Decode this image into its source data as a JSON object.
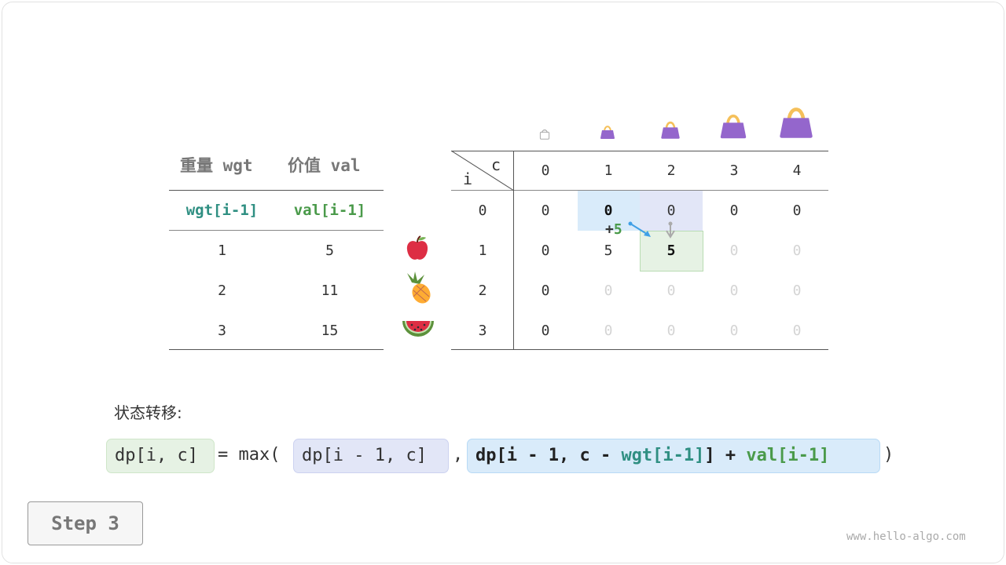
{
  "left_table": {
    "headers": [
      "重量 wgt",
      "价值 val"
    ],
    "subheaders": [
      "wgt[i-1]",
      "val[i-1]"
    ],
    "rows": [
      [
        "1",
        "5"
      ],
      [
        "2",
        "11"
      ],
      [
        "3",
        "15"
      ]
    ],
    "items": [
      "apple-icon",
      "pineapple-icon",
      "watermelon-icon"
    ]
  },
  "dp_table": {
    "corner_i": "i",
    "corner_c": "c",
    "col_headers": [
      "0",
      "1",
      "2",
      "3",
      "4"
    ],
    "row_headers": [
      "0",
      "1",
      "2",
      "3"
    ],
    "cells": [
      [
        "0",
        "0",
        "0",
        "0",
        "0"
      ],
      [
        "0",
        "5",
        "5",
        "0",
        "0"
      ],
      [
        "0",
        "0",
        "0",
        "0",
        "0"
      ],
      [
        "0",
        "0",
        "0",
        "0",
        "0"
      ]
    ],
    "filled": [
      [
        true,
        true,
        true,
        true,
        true
      ],
      [
        true,
        true,
        true,
        false,
        false
      ],
      [
        true,
        false,
        false,
        false,
        false
      ],
      [
        true,
        false,
        false,
        false,
        false
      ]
    ],
    "bag_icons": [
      "bag-capacity-0-icon",
      "bag-capacity-1-icon",
      "bag-capacity-2-icon",
      "bag-capacity-3-icon",
      "bag-capacity-4-icon"
    ],
    "plus_label": "+",
    "plus_value": "5"
  },
  "colors": {
    "green_hl": "#e6f2e4",
    "purple_hl": "#e2e6f7",
    "blue_hl": "#d9ebfa",
    "teal": "#2f8f82",
    "green": "#4a9a4a",
    "bag": "#9466cc",
    "handle": "#f5c05a"
  },
  "transition": {
    "label": "状态转移:",
    "lhs": "dp[i, c]",
    "eq": "= max(",
    "opt1": "dp[i - 1, c]",
    "comma": ",",
    "opt2_a": "dp[i - 1, c - ",
    "opt2_wgt": "wgt[i-1]",
    "opt2_b": "] + ",
    "opt2_val": "val[i-1]",
    "close": ")"
  },
  "step_button": "Step 3",
  "watermark": "www.hello-algo.com"
}
